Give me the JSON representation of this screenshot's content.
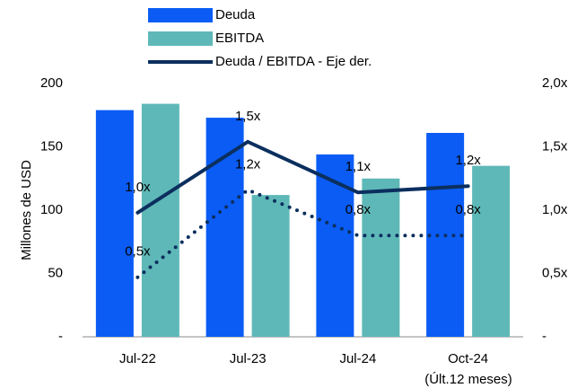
{
  "chart_data": {
    "type": "bar",
    "y_label": "Millones de USD",
    "categories": [
      "Jul-22",
      "Jul-23",
      "Jul-24",
      "Oct-24"
    ],
    "annotations": [
      "(Últ.12 meses)"
    ],
    "series": [
      {
        "name": "Deuda",
        "type": "bar",
        "color": "#0a5cf5",
        "values": [
          179,
          173,
          144,
          161
        ]
      },
      {
        "name": "EBITDA",
        "type": "bar",
        "color": "#5fb8b8",
        "values": [
          184,
          112,
          125,
          135
        ]
      },
      {
        "name": "Deuda / EBITDA - Eje der.",
        "type": "line",
        "axis": "y2",
        "color": "#0b2f5e",
        "values": [
          0.98,
          1.54,
          1.14,
          1.19
        ],
        "value_labels": [
          "1,0x",
          "1,5x",
          "1,1x",
          "1,2x"
        ]
      },
      {
        "type": "line",
        "style": "dotted",
        "axis": "y2",
        "color": "#0b2f5e",
        "values": [
          0.47,
          1.16,
          0.8,
          0.8
        ],
        "value_labels": [
          "0,5x",
          "1,2x",
          "0,8x",
          "0,8x"
        ]
      }
    ],
    "ylim": [
      0,
      200
    ],
    "yticks": [
      {
        "value": 0,
        "label": "-"
      },
      50,
      100,
      150,
      200
    ],
    "y2lim": [
      0,
      2
    ],
    "y2ticks": [
      {
        "value": 0,
        "label": "-"
      },
      {
        "value": 0.5,
        "label": "0,5x"
      },
      {
        "value": 1,
        "label": "1,0x"
      },
      {
        "value": 1.5,
        "label": "1,5x"
      },
      {
        "value": 2,
        "label": "2,0x"
      }
    ],
    "grid": false
  }
}
